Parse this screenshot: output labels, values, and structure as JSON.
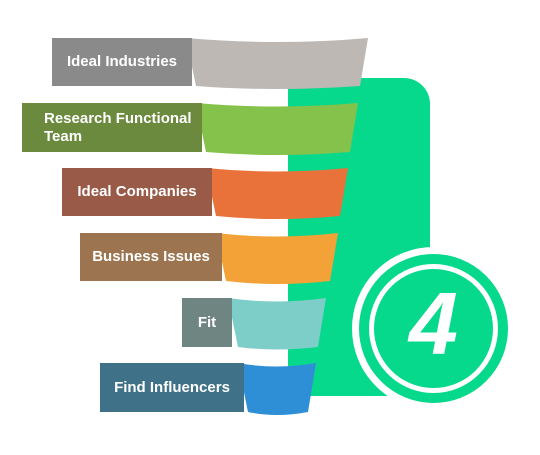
{
  "stages": [
    {
      "label": "Ideal Industries",
      "tab_color": "#8a8a8a",
      "funnel_color": "#bdb8b4"
    },
    {
      "label": "Research Functional Team",
      "tab_color": "#6b8a3e",
      "funnel_color": "#84c24c"
    },
    {
      "label": "Ideal Companies",
      "tab_color": "#9a5a48",
      "funnel_color": "#e9713a"
    },
    {
      "label": "Business Issues",
      "tab_color": "#9c7550",
      "funnel_color": "#f2a236"
    },
    {
      "label": "Fit",
      "tab_color": "#6e8582",
      "funnel_color": "#7dcdc8"
    },
    {
      "label": "Find Influencers",
      "tab_color": "#3f7188",
      "funnel_color": "#2e8fd6"
    }
  ],
  "badge": {
    "number": "4",
    "color": "#06d98b"
  }
}
